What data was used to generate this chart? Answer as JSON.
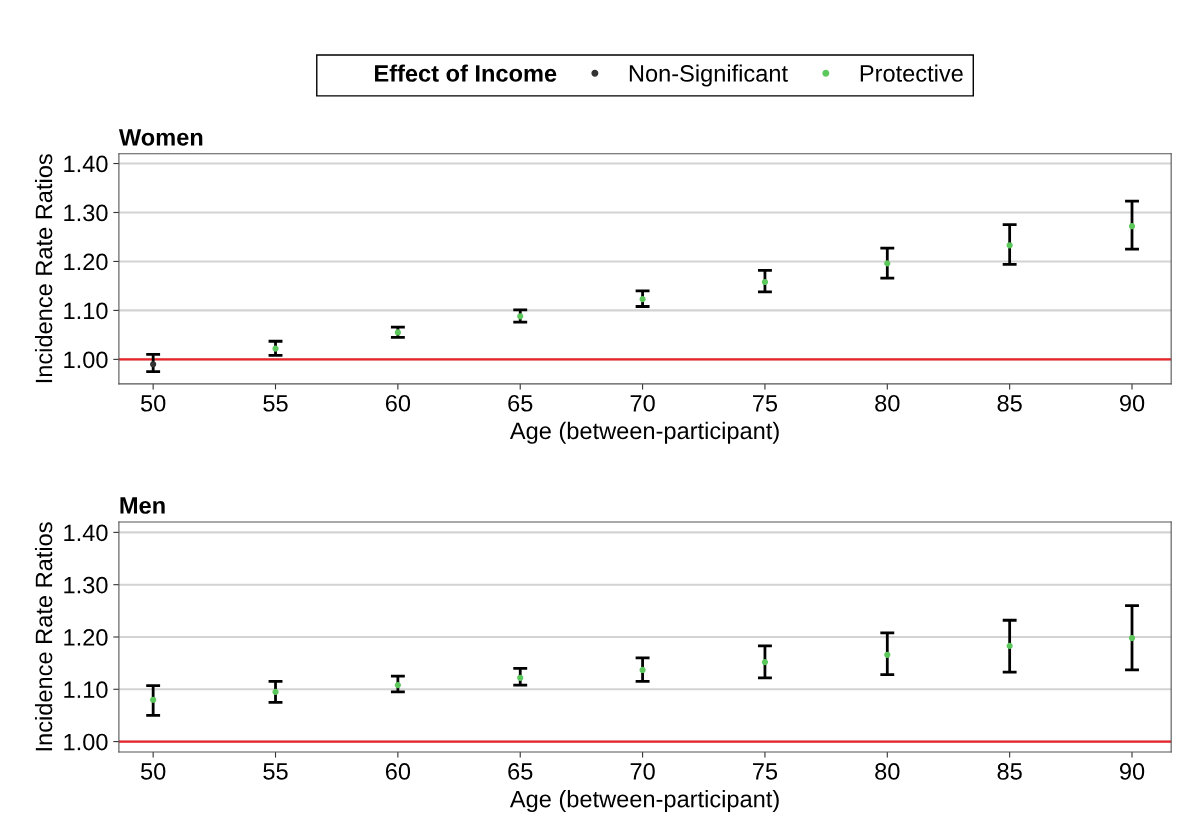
{
  "chart_data": [
    {
      "type": "scatter",
      "title": "Women",
      "xlabel": "Age (between-participant)",
      "ylabel": "Incidence Rate Ratios",
      "legend_title": "Effect of Income",
      "legend": "top",
      "grid": "y",
      "marker": "circle",
      "xlim": [
        48.6,
        91.6
      ],
      "ylim": [
        0.95,
        1.42
      ],
      "xticks": [
        50,
        55,
        60,
        65,
        70,
        75,
        80,
        85,
        90
      ],
      "yticks": [
        {
          "value": 1.0,
          "label": "1.00"
        },
        {
          "value": 1.1,
          "label": "1.10"
        },
        {
          "value": 1.2,
          "label": "1.20"
        },
        {
          "value": 1.3,
          "label": "1.30"
        },
        {
          "value": 1.4,
          "label": "1.40"
        }
      ],
      "ref_lines": [
        {
          "axis": "y",
          "value": 1.0,
          "color": "#e8262a"
        }
      ],
      "series": [
        {
          "name": "Non-Significant",
          "color": "#333333",
          "x": [
            50
          ],
          "values": [
            0.99
          ],
          "errors": [
            [
              0.975,
              1.01
            ]
          ]
        },
        {
          "name": "Protective",
          "color": "#5cc85c",
          "x": [
            55,
            60,
            65,
            70,
            75,
            80,
            85,
            90
          ],
          "values": [
            1.022,
            1.055,
            1.088,
            1.123,
            1.158,
            1.196,
            1.233,
            1.272
          ],
          "errors": [
            [
              1.008,
              1.037
            ],
            [
              1.045,
              1.066
            ],
            [
              1.076,
              1.101
            ],
            [
              1.108,
              1.14
            ],
            [
              1.138,
              1.182
            ],
            [
              1.166,
              1.227
            ],
            [
              1.194,
              1.275
            ],
            [
              1.225,
              1.323
            ]
          ]
        }
      ]
    },
    {
      "type": "scatter",
      "title": "Men",
      "xlabel": "Age (between-participant)",
      "ylabel": "Incidence Rate Ratios",
      "grid": "y",
      "marker": "circle",
      "xlim": [
        48.6,
        91.6
      ],
      "ylim": [
        0.98,
        1.42
      ],
      "xticks": [
        50,
        55,
        60,
        65,
        70,
        75,
        80,
        85,
        90
      ],
      "yticks": [
        {
          "value": 1.0,
          "label": "1.00"
        },
        {
          "value": 1.1,
          "label": "1.10"
        },
        {
          "value": 1.2,
          "label": "1.20"
        },
        {
          "value": 1.3,
          "label": "1.30"
        },
        {
          "value": 1.4,
          "label": "1.40"
        }
      ],
      "ref_lines": [
        {
          "axis": "y",
          "value": 1.0,
          "color": "#e8262a"
        }
      ],
      "series": [
        {
          "color": "#5cc85c",
          "x": [
            50,
            55,
            60,
            65,
            70,
            75,
            80,
            85,
            90
          ],
          "values": [
            1.08,
            1.095,
            1.108,
            1.122,
            1.137,
            1.152,
            1.166,
            1.183,
            1.198
          ],
          "errors": [
            [
              1.05,
              1.107
            ],
            [
              1.075,
              1.115
            ],
            [
              1.095,
              1.125
            ],
            [
              1.108,
              1.14
            ],
            [
              1.115,
              1.16
            ],
            [
              1.122,
              1.183
            ],
            [
              1.128,
              1.208
            ],
            [
              1.133,
              1.232
            ],
            [
              1.137,
              1.26
            ]
          ]
        }
      ]
    }
  ]
}
